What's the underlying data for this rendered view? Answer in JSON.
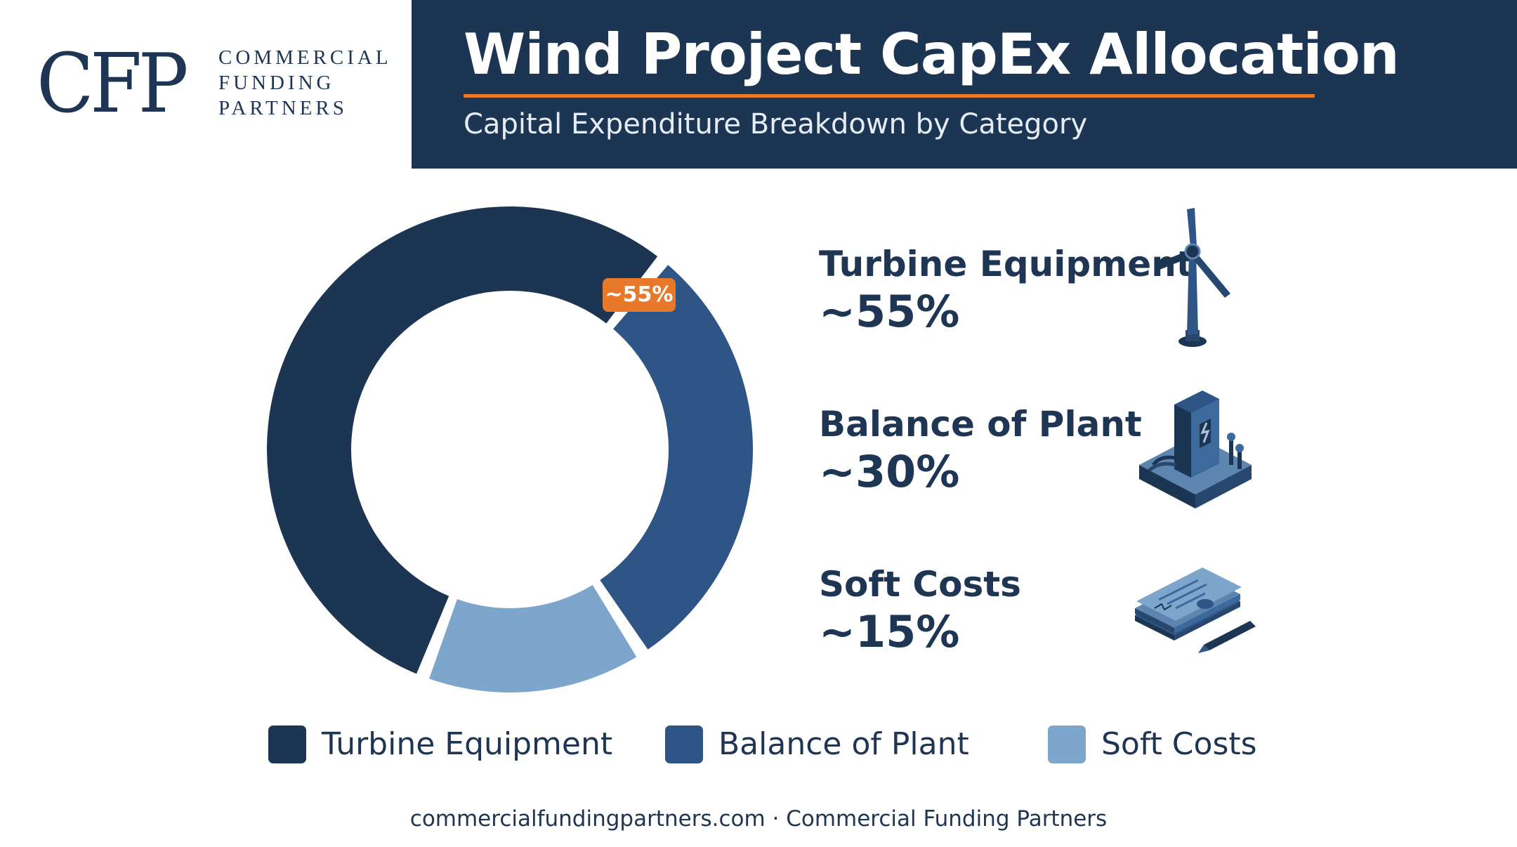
{
  "logo": {
    "mark": "CFP",
    "lines": [
      "COMMERCIAL",
      "FUNDING",
      "PARTNERS"
    ]
  },
  "header": {
    "title": "Wind Project CapEx Allocation",
    "subtitle": "Capital Expenditure Breakdown by Category",
    "accent_color": "#e8782a",
    "band_color": "#1b3553"
  },
  "chart_data": {
    "type": "pie",
    "style": "donut",
    "title": "Wind Project CapEx Allocation",
    "subtitle": "Capital Expenditure Breakdown by Category",
    "categories": [
      "Turbine Equipment",
      "Balance of Plant",
      "Soft Costs"
    ],
    "values": [
      55,
      30,
      15
    ],
    "value_labels": [
      "~55%",
      "~30%",
      "~15%"
    ],
    "colors": [
      "#1b3553",
      "#2e5585",
      "#7ea5cb"
    ],
    "slice_labels": [
      "~55%",
      "",
      ""
    ],
    "legend_position": "bottom"
  },
  "categories_panel": [
    {
      "name": "Turbine Equipment",
      "value": "~55%",
      "icon": "wind-turbine-icon"
    },
    {
      "name": "Balance of Plant",
      "value": "~30%",
      "icon": "substation-icon"
    },
    {
      "name": "Soft Costs",
      "value": "~15%",
      "icon": "permit-documents-icon"
    }
  ],
  "legend": [
    {
      "label": "Turbine Equipment",
      "color": "#1b3553"
    },
    {
      "label": "Balance of Plant",
      "color": "#2e5585"
    },
    {
      "label": "Soft Costs",
      "color": "#7ea5cb"
    }
  ],
  "footer": "commercialfundingpartners.com · Commercial Funding Partners"
}
